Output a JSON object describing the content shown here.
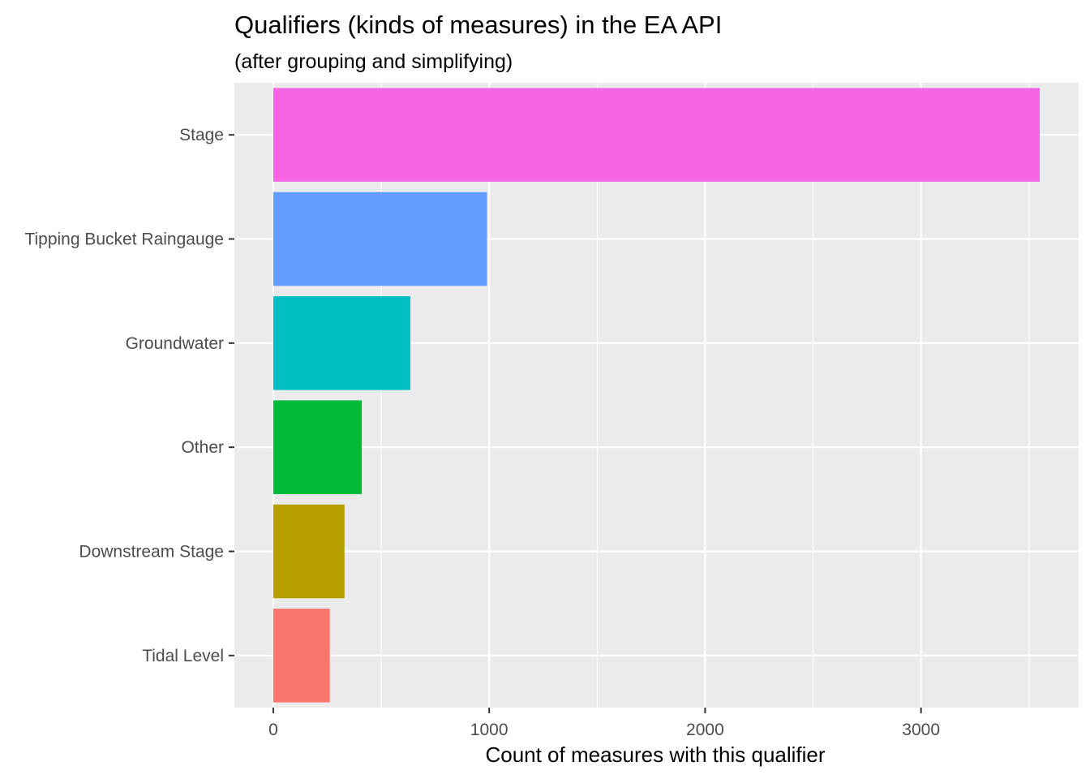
{
  "chart_data": {
    "type": "bar",
    "orientation": "horizontal",
    "title": "Qualifiers (kinds of measures) in the EA API",
    "subtitle": "(after grouping and simplifying)",
    "xlabel": "Count of measures with this qualifier",
    "ylabel": "",
    "categories": [
      "Stage",
      "Tipping Bucket Raingauge",
      "Groundwater",
      "Other",
      "Downstream Stage",
      "Tidal Level"
    ],
    "values": [
      3550,
      990,
      635,
      410,
      330,
      262
    ],
    "colors": [
      "#F564E3",
      "#619CFF",
      "#00BFC4",
      "#00BA38",
      "#B79F00",
      "#F8766D"
    ],
    "xlim": [
      -180,
      3730
    ],
    "x_ticks": [
      0,
      1000,
      2000,
      3000
    ],
    "x_tick_labels": [
      "0",
      "1000",
      "2000",
      "3000"
    ],
    "grid": true,
    "legend": "none"
  }
}
